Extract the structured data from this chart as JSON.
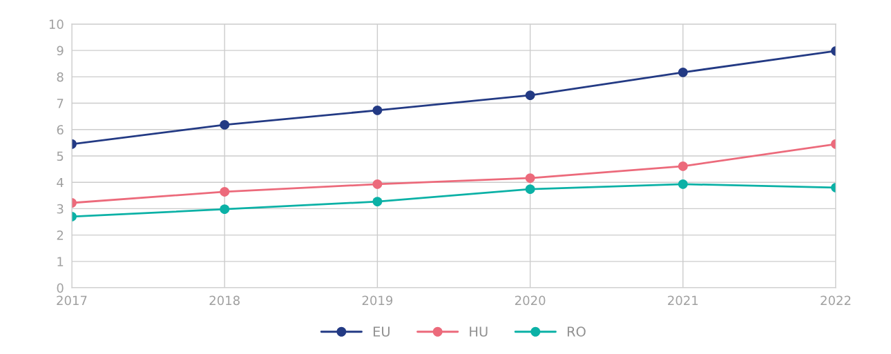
{
  "chart_data": {
    "type": "line",
    "x": [
      2017,
      2018,
      2019,
      2020,
      2021,
      2022
    ],
    "series": [
      {
        "name": "EU",
        "color": "#233a84",
        "values": [
          5.45,
          6.18,
          6.73,
          7.3,
          8.17,
          8.98
        ]
      },
      {
        "name": "HU",
        "color": "#ec6a7b",
        "values": [
          3.22,
          3.64,
          3.93,
          4.16,
          4.61,
          5.45
        ]
      },
      {
        "name": "RO",
        "color": "#0bb1a6",
        "values": [
          2.7,
          2.98,
          3.27,
          3.74,
          3.93,
          3.8
        ]
      }
    ],
    "xlim": [
      2017,
      2022
    ],
    "xticks": [
      2017,
      2018,
      2019,
      2020,
      2021,
      2022
    ],
    "ylim": [
      0,
      10
    ],
    "yticks": [
      0,
      1,
      2,
      3,
      4,
      5,
      6,
      7,
      8,
      9,
      10
    ],
    "grid": true,
    "legend": "bottom",
    "marker": "circle",
    "line_style": "solid"
  }
}
